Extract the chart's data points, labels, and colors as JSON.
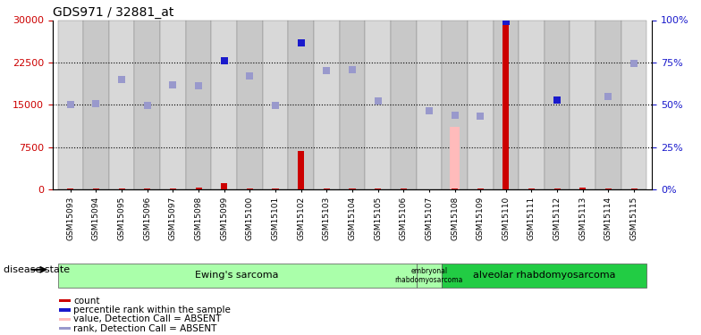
{
  "title": "GDS971 / 32881_at",
  "samples": [
    "GSM15093",
    "GSM15094",
    "GSM15095",
    "GSM15096",
    "GSM15097",
    "GSM15098",
    "GSM15099",
    "GSM15100",
    "GSM15101",
    "GSM15102",
    "GSM15103",
    "GSM15104",
    "GSM15105",
    "GSM15106",
    "GSM15107",
    "GSM15108",
    "GSM15109",
    "GSM15110",
    "GSM15111",
    "GSM15112",
    "GSM15113",
    "GSM15114",
    "GSM15115"
  ],
  "count_values": [
    100,
    100,
    100,
    100,
    100,
    300,
    1100,
    100,
    100,
    6800,
    100,
    100,
    100,
    100,
    null,
    100,
    100,
    29500,
    100,
    100,
    300,
    100,
    100
  ],
  "percentile_present": [
    null,
    null,
    null,
    null,
    null,
    null,
    22800,
    null,
    null,
    26000,
    null,
    null,
    null,
    null,
    null,
    null,
    null,
    29800,
    null,
    15800,
    null,
    null,
    null
  ],
  "value_absent": [
    null,
    null,
    null,
    null,
    null,
    null,
    null,
    null,
    null,
    null,
    null,
    null,
    null,
    null,
    null,
    11000,
    null,
    null,
    null,
    null,
    null,
    null,
    null
  ],
  "rank_absent": [
    15100,
    15200,
    19500,
    14800,
    18500,
    18400,
    null,
    20100,
    14900,
    null,
    21100,
    21200,
    15700,
    null,
    14000,
    13200,
    12900,
    null,
    null,
    null,
    null,
    16500,
    22300
  ],
  "count_color": "#cc0000",
  "rank_present_color": "#1a1acc",
  "value_absent_color": "#ffbbbb",
  "rank_absent_color": "#9999cc",
  "ylim_left": [
    0,
    30000
  ],
  "ylim_right": [
    0,
    100
  ],
  "yticks_left": [
    0,
    7500,
    15000,
    22500,
    30000
  ],
  "yticks_right": [
    0,
    25,
    50,
    75,
    100
  ]
}
